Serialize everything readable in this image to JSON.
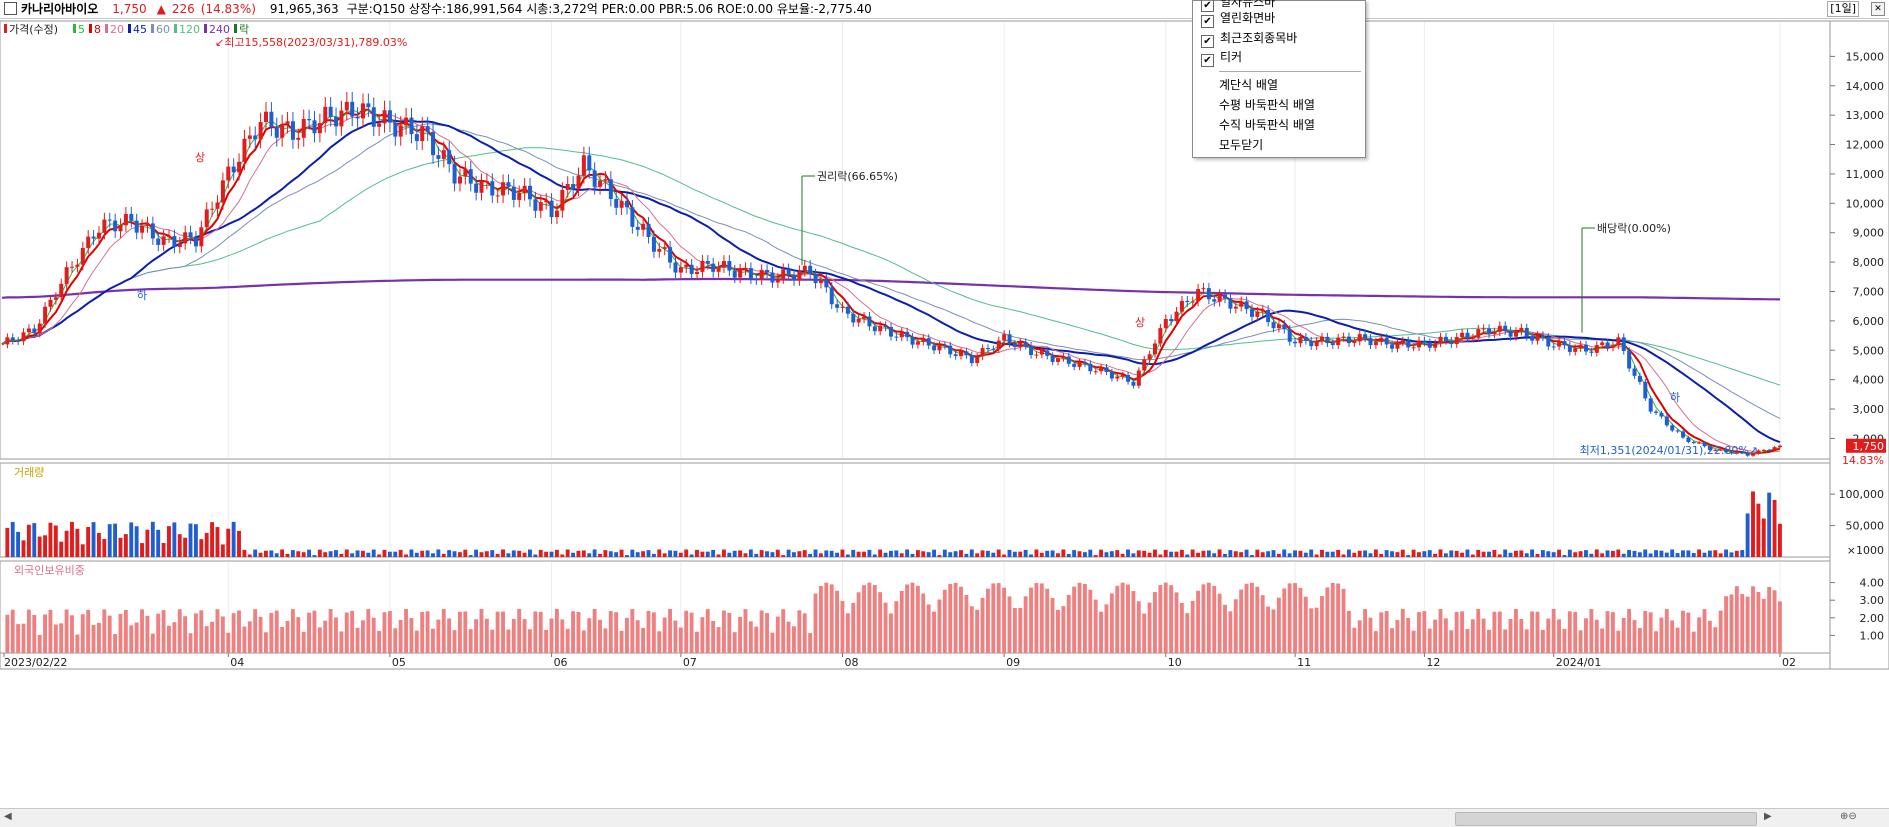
{
  "header": {
    "stock_name": "카나리아바이오",
    "price": "1,750",
    "change_arrow": "▲",
    "change": "226",
    "change_pct": "(14.83%)",
    "volume": "91,965,363",
    "info": "구분:Q150 상장수:186,991,564 시총:3,272억 PER:0.00 PBR:5.06 ROE:0.00 유보율:-2,775.40",
    "period": "[1일]"
  },
  "menu": {
    "items": [
      {
        "label": "일자뉴스바",
        "checked": true
      },
      {
        "label": "열린화면바",
        "checked": true
      },
      {
        "label": "최근조회종목바",
        "checked": true
      },
      {
        "label": "티커",
        "checked": true
      }
    ],
    "actions": [
      "계단식 배열",
      "수평 바둑판식 배열",
      "수직 바둑판식 배열",
      "모두닫기"
    ]
  },
  "colors": {
    "up": "#e21b1b",
    "down": "#1d5fd1",
    "ma5": "#2db83d",
    "ma8": "#e00000",
    "ma20": "#d9708c",
    "ma45": "#0a1faf",
    "ma60": "#7a8fb5",
    "ma120": "#4fbf8a",
    "ma240": "#7a2fae",
    "foreign": "#f08080"
  },
  "chart_data": [
    {
      "type": "candlestick",
      "title": "가격(수정)",
      "legend": [
        {
          "label": "가격(수정)",
          "color": "#e21b1b"
        },
        {
          "label": "5",
          "color": "#2db83d"
        },
        {
          "label": "8",
          "color": "#e00000"
        },
        {
          "label": "20",
          "color": "#d9708c"
        },
        {
          "label": "45",
          "color": "#0a1faf"
        },
        {
          "label": "60",
          "color": "#7a8fb5"
        },
        {
          "label": "120",
          "color": "#4fbf8a"
        },
        {
          "label": "240",
          "color": "#7a2fae"
        },
        {
          "label": "락",
          "color": "#1a7a1a"
        }
      ],
      "x_labels": [
        "2023/02/22",
        "04",
        "05",
        "06",
        "07",
        "08",
        "09",
        "10",
        "11",
        "12",
        "2024/01",
        "02"
      ],
      "y_ticks": [
        "2,000",
        "3,000",
        "4,000",
        "5,000",
        "6,000",
        "7,000",
        "8,000",
        "9,000",
        "10,000",
        "11,000",
        "12,000",
        "13,000",
        "14,000",
        "15,000"
      ],
      "ylim": [
        1300,
        16000
      ],
      "close_series": [
        [
          "02/22",
          5200
        ],
        [
          "03/01",
          5700
        ],
        [
          "03/08",
          7600
        ],
        [
          "03/15",
          9200
        ],
        [
          "03/20",
          9400
        ],
        [
          "03/24",
          8700
        ],
        [
          "03/28",
          8800
        ],
        [
          "03/31",
          11000
        ],
        [
          "04/07",
          12800
        ],
        [
          "04/14",
          12400
        ],
        [
          "04/21",
          12900
        ],
        [
          "04/28",
          13200
        ],
        [
          "05/05",
          12700
        ],
        [
          "05/12",
          12400
        ],
        [
          "05/19",
          11000
        ],
        [
          "05/26",
          10500
        ],
        [
          "06/02",
          10400
        ],
        [
          "06/07",
          9700
        ],
        [
          "06/12",
          11300
        ],
        [
          "06/19",
          10100
        ],
        [
          "06/26",
          8800
        ],
        [
          "07/03",
          7700
        ],
        [
          "07/10",
          7900
        ],
        [
          "07/17",
          7600
        ],
        [
          "07/24",
          7500
        ],
        [
          "07/27",
          7700
        ],
        [
          "08/03",
          6300
        ],
        [
          "08/10",
          5800
        ],
        [
          "08/17",
          5400
        ],
        [
          "08/24",
          5100
        ],
        [
          "08/31",
          4700
        ],
        [
          "09/07",
          5400
        ],
        [
          "09/14",
          4900
        ],
        [
          "09/21",
          4600
        ],
        [
          "09/28",
          4300
        ],
        [
          "10/04",
          3900
        ],
        [
          "10/10",
          6000
        ],
        [
          "10/17",
          7000
        ],
        [
          "10/24",
          6600
        ],
        [
          "10/31",
          6200
        ],
        [
          "11/07",
          5300
        ],
        [
          "11/14",
          5300
        ],
        [
          "11/21",
          5400
        ],
        [
          "11/28",
          5200
        ],
        [
          "12/05",
          5200
        ],
        [
          "12/12",
          5400
        ],
        [
          "12/19",
          5700
        ],
        [
          "12/26",
          5600
        ],
        [
          "01/02",
          5200
        ],
        [
          "01/09",
          5000
        ],
        [
          "01/12",
          5300
        ],
        [
          "01/18",
          3000
        ],
        [
          "01/22",
          2000
        ],
        [
          "01/26",
          1600
        ],
        [
          "01/31",
          1450
        ],
        [
          "02/02",
          1750
        ]
      ],
      "annotations": [
        {
          "text": "최고15,558(2023/03/31),789.03%"
        },
        {
          "text": "권리락(66.65%)"
        },
        {
          "text": "배당락(0.00%)"
        },
        {
          "text": "최저1,351(2024/01/31),22.80%"
        },
        {
          "text": "상"
        },
        {
          "text": "하"
        }
      ],
      "last_price_label": "1,750",
      "last_change_label": "14.83%"
    },
    {
      "type": "bar",
      "title": "거래량",
      "y_ticks": [
        "100,000",
        "50,000",
        "×1000"
      ],
      "ylim": [
        0,
        140000
      ],
      "note": "values in thousands of shares"
    },
    {
      "type": "bar",
      "title": "외국인보유비중",
      "y_ticks": [
        "1.00",
        "2.00",
        "3.00",
        "4.00"
      ],
      "ylim": [
        0,
        5
      ]
    }
  ]
}
